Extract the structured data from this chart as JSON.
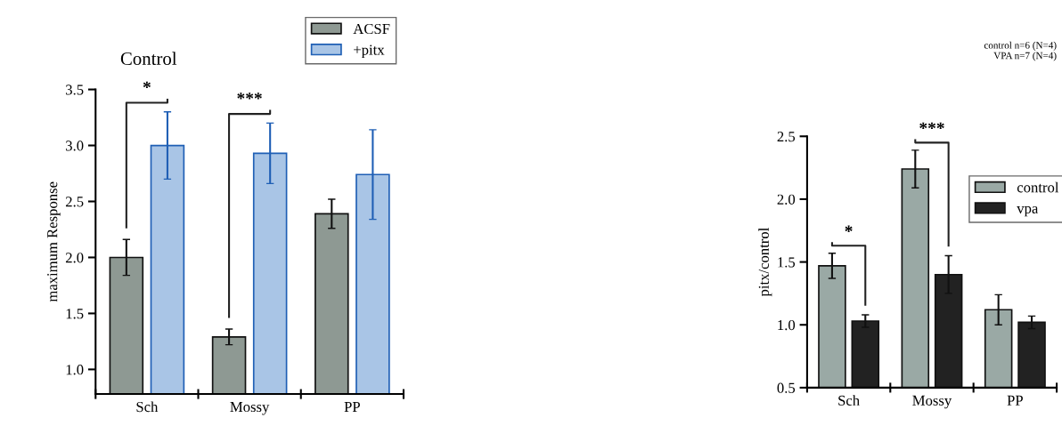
{
  "chart_data": [
    {
      "type": "bar",
      "title": "Control",
      "ylabel": "maximum Response",
      "categories": [
        "Sch",
        "Mossy",
        "PP"
      ],
      "series": [
        {
          "name": "ACSF",
          "color": "#8e9993",
          "values": [
            2.0,
            1.29,
            2.39
          ],
          "errors": [
            0.16,
            0.07,
            0.13
          ]
        },
        {
          "name": "+pitx",
          "color": "#a9c5e6",
          "values": [
            3.0,
            2.93,
            2.74
          ],
          "errors": [
            0.3,
            0.27,
            0.4
          ]
        }
      ],
      "ylim": [
        0.78,
        3.5
      ],
      "yticks": [
        {
          "value": 1.0,
          "label": "1.0"
        },
        1.5,
        {
          "value": 2.0,
          "label": "2.0"
        },
        2.5,
        {
          "value": 3.0,
          "label": "3.0"
        },
        3.5
      ],
      "legend": "top right",
      "grid": false,
      "annotations": [
        "*",
        "***"
      ]
    },
    {
      "type": "bar",
      "ylabel": "pitx/control",
      "categories": [
        "Sch",
        "Mossy",
        "PP"
      ],
      "series": [
        {
          "name": "control",
          "color": "#9aa9a5",
          "values": [
            1.47,
            2.24,
            1.12
          ],
          "errors": [
            0.1,
            0.15,
            0.12
          ]
        },
        {
          "name": "vpa",
          "color": "#222222",
          "values": [
            1.03,
            1.4,
            1.02
          ],
          "errors": [
            0.05,
            0.15,
            0.05
          ]
        }
      ],
      "ylim": [
        0.5,
        2.5
      ],
      "yticks": [
        0.5,
        {
          "value": 1.0,
          "label": "1.0"
        },
        1.5,
        {
          "value": 2.0,
          "label": "2.0"
        },
        2.5
      ],
      "legend": "right",
      "grid": false,
      "subtitle": "control n=6 (N=4)\nVPA n=7 (N=4)",
      "annotations": [
        "*",
        "***"
      ]
    }
  ]
}
